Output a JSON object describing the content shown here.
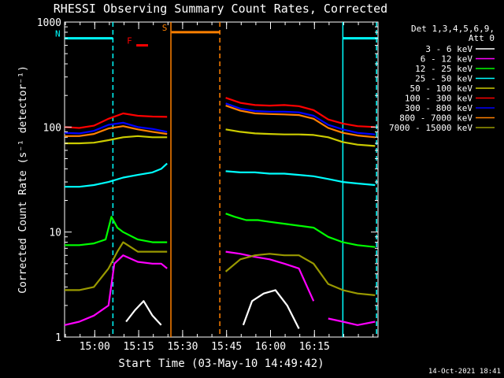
{
  "chart_data": {
    "type": "line",
    "title": "RHESSI Observing Summary Count Rates, Corrected",
    "xlabel": "Start Time (03-May-10 14:49:42)",
    "ylabel": "Corrected Count Rate (s⁻¹ detector⁻¹)",
    "yscale": "log",
    "ylim": [
      1,
      1000
    ],
    "xlim_minutes": [
      0,
      107
    ],
    "yticks": [
      {
        "value": 1,
        "label": "1"
      },
      {
        "value": 10,
        "label": "10"
      },
      {
        "value": 100,
        "label": "100"
      },
      {
        "value": 1000,
        "label": "1000"
      }
    ],
    "xticks": [
      {
        "minutes": 10.3,
        "label": "15:00"
      },
      {
        "minutes": 25.3,
        "label": "15:15"
      },
      {
        "minutes": 40.3,
        "label": "15:30"
      },
      {
        "minutes": 55.3,
        "label": "15:45"
      },
      {
        "minutes": 70.3,
        "label": "16:00"
      },
      {
        "minutes": 85.3,
        "label": "16:15"
      }
    ],
    "legend_header": [
      "Det 1,3,4,5,6,9,",
      "Att 0"
    ],
    "series": [
      {
        "name": "3 - 6 keV",
        "color": "#ffffff",
        "segments": [
          {
            "x": [
              21,
              24,
              27,
              30,
              33
            ],
            "y": [
              1.4,
              1.8,
              2.2,
              1.6,
              1.3
            ]
          },
          {
            "x": [
              61,
              64,
              68,
              72,
              76,
              80
            ],
            "y": [
              1.3,
              2.2,
              2.6,
              2.8,
              2.0,
              1.2
            ]
          }
        ]
      },
      {
        "name": "6 - 12 keV",
        "color": "#ff00ff",
        "segments": [
          {
            "x": [
              0,
              5,
              10,
              15,
              17,
              20,
              25,
              30,
              33,
              35
            ],
            "y": [
              1.3,
              1.4,
              1.6,
              2.0,
              5,
              6,
              5.2,
              5,
              5,
              4.5
            ]
          },
          {
            "x": [
              55,
              60,
              65,
              70,
              75,
              80,
              85
            ],
            "y": [
              6.5,
              6.2,
              5.8,
              5.5,
              5.0,
              4.5,
              2.2
            ]
          },
          {
            "x": [
              90,
              95,
              100,
              106
            ],
            "y": [
              1.5,
              1.4,
              1.3,
              1.4
            ]
          }
        ]
      },
      {
        "name": "12 - 25 keV",
        "color": "#00ff00",
        "segments": [
          {
            "x": [
              0,
              5,
              10,
              14,
              16,
              18,
              20,
              25,
              30,
              35
            ],
            "y": [
              7.5,
              7.5,
              7.8,
              8.5,
              14,
              11,
              10,
              8.5,
              8,
              8
            ]
          },
          {
            "x": [
              55,
              58,
              62,
              66,
              70,
              75,
              80,
              85,
              90,
              95,
              100,
              106
            ],
            "y": [
              15,
              14,
              13,
              13,
              12.5,
              12,
              11.5,
              11,
              9,
              8,
              7.5,
              7.2
            ]
          }
        ]
      },
      {
        "name": "25 - 50 keV",
        "color": "#00ffff",
        "segments": [
          {
            "x": [
              0,
              5,
              10,
              15,
              20,
              25,
              30,
              33,
              35
            ],
            "y": [
              27,
              27,
              28,
              30,
              33,
              35,
              37,
              40,
              45
            ]
          },
          {
            "x": [
              55,
              60,
              65,
              70,
              75,
              80,
              85,
              90,
              95,
              100,
              106
            ],
            "y": [
              38,
              37,
              37,
              36,
              36,
              35,
              34,
              32,
              30,
              29,
              28
            ]
          }
        ]
      },
      {
        "name": "50 - 100 keV",
        "color": "#cccc00",
        "segments": [
          {
            "x": [
              0,
              5,
              10,
              15,
              20,
              25,
              30,
              35
            ],
            "y": [
              70,
              70,
              71,
              75,
              80,
              82,
              80,
              80
            ]
          },
          {
            "x": [
              55,
              60,
              65,
              70,
              75,
              80,
              85,
              90,
              95,
              100,
              106
            ],
            "y": [
              95,
              90,
              87,
              86,
              85,
              85,
              84,
              80,
              72,
              68,
              66
            ]
          }
        ]
      },
      {
        "name": "100 - 300 keV",
        "color": "#ff0000",
        "segments": [
          {
            "x": [
              0,
              5,
              10,
              15,
              20,
              25,
              30,
              35
            ],
            "y": [
              100,
              98,
              103,
              120,
              135,
              128,
              126,
              125
            ]
          },
          {
            "x": [
              55,
              60,
              65,
              70,
              75,
              80,
              85,
              90,
              95,
              100,
              106
            ],
            "y": [
              190,
              170,
              162,
              160,
              162,
              158,
              145,
              118,
              108,
              102,
              100
            ]
          }
        ]
      },
      {
        "name": "300 - 800 keV",
        "color": "#0000ff",
        "segments": [
          {
            "x": [
              0,
              5,
              10,
              15,
              20,
              25,
              30,
              35
            ],
            "y": [
              88,
              87,
              92,
              105,
              110,
              100,
              96,
              90
            ]
          },
          {
            "x": [
              55,
              60,
              65,
              70,
              75,
              80,
              85,
              90,
              95,
              100,
              106
            ],
            "y": [
              168,
              150,
              142,
              140,
              140,
              138,
              128,
              105,
              95,
              88,
              85
            ]
          }
        ]
      },
      {
        "name": "800 - 7000 keV",
        "color": "#ff8000",
        "segments": [
          {
            "x": [
              0,
              5,
              10,
              15,
              20,
              25,
              30,
              35
            ],
            "y": [
              82,
              82,
              86,
              97,
              102,
              95,
              90,
              86
            ]
          },
          {
            "x": [
              55,
              60,
              65,
              70,
              75,
              80,
              85,
              90,
              95,
              100,
              106
            ],
            "y": [
              160,
              143,
              135,
              133,
              132,
              130,
              120,
              98,
              88,
              83,
              80
            ]
          }
        ]
      },
      {
        "name": "7000 - 15000 keV",
        "color": "#999900",
        "segments": [
          {
            "x": [
              0,
              5,
              10,
              15,
              18,
              20,
              25,
              30,
              35
            ],
            "y": [
              2.8,
              2.8,
              3.0,
              4.5,
              6.5,
              8,
              6.5,
              6.5,
              6.5
            ]
          },
          {
            "x": [
              55,
              60,
              65,
              70,
              75,
              80,
              85,
              90,
              95,
              100,
              106
            ],
            "y": [
              4.2,
              5.5,
              6.0,
              6.2,
              6.0,
              6.0,
              5.0,
              3.2,
              2.8,
              2.6,
              2.5
            ]
          }
        ]
      }
    ],
    "annotations": [
      {
        "label": "N",
        "color": "#00ffff",
        "x_start": 0,
        "x_end": 16.5,
        "y": 700
      },
      {
        "label": "",
        "color": "#00ffff",
        "x_start": 95,
        "x_end": 107,
        "y": 700
      },
      {
        "label": "F",
        "color": "#ff0000",
        "x_start": 24.5,
        "x_end": 28.5,
        "y": 600
      },
      {
        "label": "S",
        "color": "#ff8000",
        "x_start": 36.5,
        "x_end": 53,
        "y": 800
      }
    ],
    "vertical_lines": [
      {
        "minutes": 16.5,
        "color": "#00ffff",
        "dashed": true
      },
      {
        "minutes": 36.3,
        "color": "#ff8000",
        "dashed": false
      },
      {
        "minutes": 53,
        "color": "#ff8000",
        "dashed": true
      },
      {
        "minutes": 95,
        "color": "#00ffff",
        "dashed": false
      },
      {
        "minutes": 106.5,
        "color": "#00ffff",
        "dashed": true
      }
    ],
    "timestamp": "14-Oct-2021 18:41"
  }
}
